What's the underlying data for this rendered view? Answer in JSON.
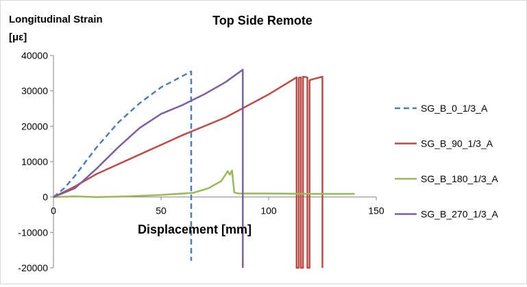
{
  "chart_data": {
    "type": "line",
    "title": "Top Side Remote",
    "ylabel_line1": "Longitudinal  Strain",
    "ylabel_line2": "[με]",
    "xlabel": "Displacement [mm]",
    "xlim": [
      0,
      150
    ],
    "ylim": [
      -20000,
      40000
    ],
    "x_ticks": [
      0,
      50,
      100,
      150
    ],
    "y_ticks": [
      -20000,
      -10000,
      0,
      10000,
      20000,
      30000,
      40000
    ],
    "grid": false,
    "legend_position": "right",
    "series": [
      {
        "name": "SG_B_0_1/3_A",
        "color": "#4a7ebb",
        "dash": "dashed",
        "points": [
          [
            0,
            0
          ],
          [
            5,
            2500
          ],
          [
            10,
            6000
          ],
          [
            15,
            10000
          ],
          [
            20,
            14000
          ],
          [
            25,
            17500
          ],
          [
            30,
            21000
          ],
          [
            40,
            26500
          ],
          [
            50,
            31000
          ],
          [
            64,
            35500
          ],
          [
            64,
            -18000
          ]
        ]
      },
      {
        "name": "SG_B_90_1/3_A",
        "color": "#be4b48",
        "dash": "solid",
        "points": [
          [
            0,
            0
          ],
          [
            10,
            3000
          ],
          [
            20,
            6500
          ],
          [
            40,
            12000
          ],
          [
            60,
            17500
          ],
          [
            80,
            22500
          ],
          [
            100,
            29000
          ],
          [
            113,
            33800
          ],
          [
            113,
            -20000
          ],
          [
            114,
            -20000
          ],
          [
            114,
            33700
          ],
          [
            115,
            33800
          ],
          [
            115,
            -20000
          ],
          [
            116,
            -20000
          ],
          [
            116,
            34000
          ],
          [
            118,
            33800
          ],
          [
            118,
            -20000
          ],
          [
            119,
            -20000
          ],
          [
            119,
            33000
          ],
          [
            120,
            33200
          ],
          [
            125,
            34000
          ],
          [
            125,
            -20000
          ]
        ]
      },
      {
        "name": "SG_B_180_1/3_A",
        "color": "#98b954",
        "dash": "solid",
        "points": [
          [
            0,
            0
          ],
          [
            10,
            200
          ],
          [
            20,
            0
          ],
          [
            35,
            200
          ],
          [
            50,
            600
          ],
          [
            65,
            1200
          ],
          [
            72,
            2500
          ],
          [
            78,
            4500
          ],
          [
            81,
            7300
          ],
          [
            82,
            6300
          ],
          [
            83,
            7500
          ],
          [
            84,
            1300
          ],
          [
            86,
            1000
          ],
          [
            100,
            1000
          ],
          [
            120,
            900
          ],
          [
            140,
            900
          ]
        ]
      },
      {
        "name": "SG_B_270_1/3_A",
        "color": "#7d5fa0",
        "dash": "solid",
        "points": [
          [
            0,
            0
          ],
          [
            10,
            2500
          ],
          [
            20,
            8000
          ],
          [
            30,
            14000
          ],
          [
            40,
            19500
          ],
          [
            50,
            23500
          ],
          [
            60,
            26000
          ],
          [
            70,
            29000
          ],
          [
            80,
            32500
          ],
          [
            88,
            36000
          ],
          [
            88,
            -20000
          ]
        ]
      }
    ]
  }
}
